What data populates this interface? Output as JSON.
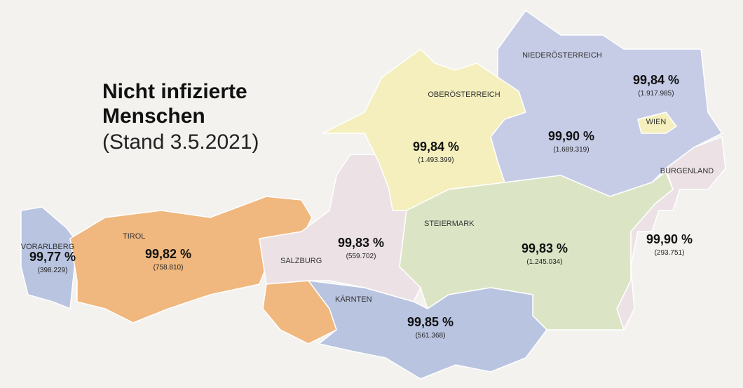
{
  "title": {
    "line1": "Nicht infizierte",
    "line2": "Menschen",
    "line3": "(Stand 3.5.2021)"
  },
  "regions": [
    {
      "name": "VORARLBERG",
      "percent": "99,77 %",
      "count": "(398.229)"
    },
    {
      "name": "TIROL",
      "percent": "99,82 %",
      "count": "(758.810)"
    },
    {
      "name": "SALZBURG",
      "percent": "99,83 %",
      "count": "(559.702)"
    },
    {
      "name": "OBERÖSTERREICH",
      "percent": "99,84 %",
      "count": "(1.493.399)"
    },
    {
      "name": "NIEDERÖSTERREICH",
      "percent": "99,90 %",
      "count": "(1.689.319)"
    },
    {
      "name": "WIEN",
      "percent": "99,84 %",
      "count": "(1.917.985)"
    },
    {
      "name": "BURGENLAND",
      "percent": "99,90 %",
      "count": "(293.751)"
    },
    {
      "name": "STEIERMARK",
      "percent": "99,83 %",
      "count": "(1.245.034)"
    },
    {
      "name": "KÄRNTEN",
      "percent": "99,85 %",
      "count": "(561.368)"
    }
  ]
}
